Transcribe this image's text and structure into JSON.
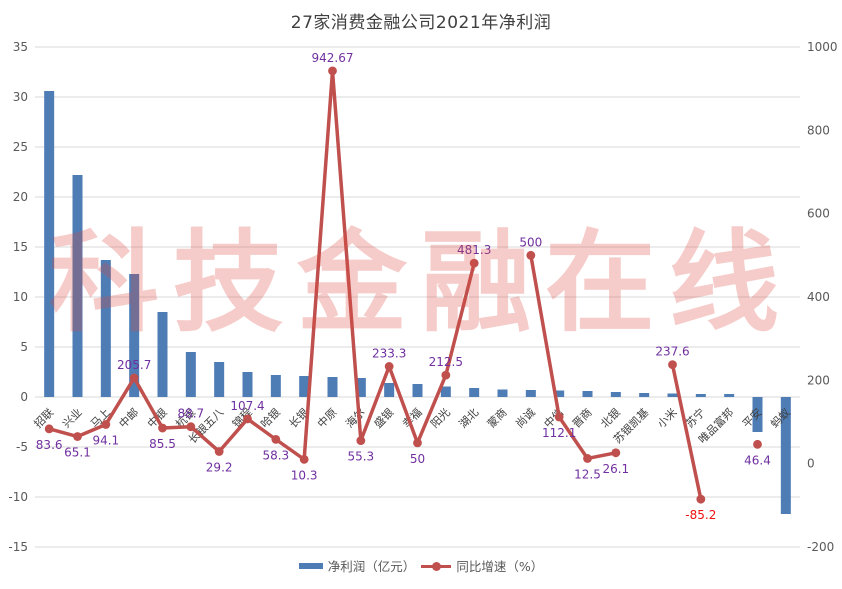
{
  "title": "27家消费金融公司2021年净利润",
  "watermark": "科技金融在线",
  "legend": {
    "bar_label": "净利润（亿元）",
    "line_label": "同比增速（%）"
  },
  "colors": {
    "bar": "#4e7cb5",
    "line": "#c0504d",
    "value_label": "#7030a0",
    "negative_value_label": "#ee1111",
    "axis_text": "#595959",
    "category_text": "#3f3f3f",
    "grid": "#d9d9d9",
    "title_text": "#3f3f3f",
    "watermark_text": "#dc4b41"
  },
  "chart_data": {
    "type": "bar",
    "subtype": "bar-line-combo",
    "title": "27家消费金融公司2021年净利润",
    "categories": [
      "招联",
      "兴业",
      "马上",
      "中邮",
      "中银",
      "杭银",
      "长银五八",
      "锦程",
      "哈银",
      "长银",
      "中原",
      "海尔",
      "盛银",
      "幸福",
      "阳光",
      "湖北",
      "蒙商",
      "尚诚",
      "中信",
      "晋商",
      "北银",
      "苏银凯基",
      "小米",
      "苏宁",
      "唯品富邦",
      "平安",
      "蚂蚁"
    ],
    "series": [
      {
        "name": "净利润（亿元）",
        "type": "bar",
        "axis": "left",
        "values": [
          30.6,
          22.2,
          13.7,
          12.3,
          8.5,
          4.5,
          3.5,
          2.5,
          2.2,
          2.1,
          2.0,
          1.9,
          1.4,
          1.3,
          1.05,
          0.9,
          0.75,
          0.7,
          0.65,
          0.6,
          0.5,
          0.4,
          0.35,
          0.3,
          0.3,
          -3.5,
          -11.7
        ]
      },
      {
        "name": "同比增速（%）",
        "type": "line",
        "axis": "right",
        "values": [
          83.6,
          65.1,
          94.1,
          205.7,
          85.5,
          88.7,
          29.2,
          107.4,
          58.3,
          10.3,
          942.67,
          55.3,
          233.3,
          50,
          212.5,
          481.3,
          null,
          500,
          112.1,
          12.5,
          26.1,
          null,
          237.6,
          -85.2,
          null,
          46.4,
          null
        ],
        "label_side": [
          "below",
          "below",
          "below",
          "above",
          "below",
          "above",
          "below",
          "above",
          "below",
          "below",
          "above",
          "below",
          "above",
          "below",
          "above",
          "above",
          null,
          "above",
          "below",
          "below",
          "below",
          null,
          "above",
          "below",
          null,
          "below",
          null
        ]
      }
    ],
    "left_axis": {
      "min": -15,
      "max": 35,
      "ticks": [
        35,
        30,
        25,
        20,
        15,
        10,
        5,
        0,
        -5,
        -10,
        -15
      ]
    },
    "right_axis": {
      "min": -200,
      "max": 1000,
      "ticks": [
        1000,
        800,
        600,
        400,
        200,
        0,
        -200
      ]
    },
    "grid": "horizontal-only",
    "legend_position": "bottom"
  }
}
